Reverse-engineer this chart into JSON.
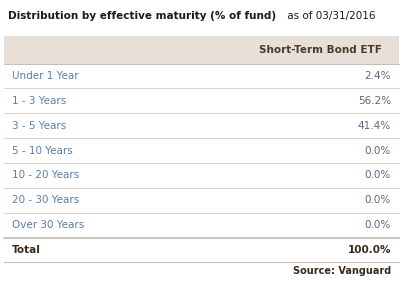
{
  "title_bold": "Distribution by effective maturity (% of fund)",
  "title_normal": " as of 03/31/2016",
  "header_col2": "Short-Term Bond ETF",
  "rows": [
    [
      "Under 1 Year",
      "2.4%"
    ],
    [
      "1 - 3 Years",
      "56.2%"
    ],
    [
      "3 - 5 Years",
      "41.4%"
    ],
    [
      "5 - 10 Years",
      "0.0%"
    ],
    [
      "10 - 20 Years",
      "0.0%"
    ],
    [
      "20 - 30 Years",
      "0.0%"
    ],
    [
      "Over 30 Years",
      "0.0%"
    ]
  ],
  "total_row": [
    "Total",
    "100.0%"
  ],
  "source": "Source: Vanguard",
  "bg_color": "#ffffff",
  "header_bg": "#e8e0d8",
  "row_line_color": "#c8c0b8",
  "text_color_left": "#5a7fa8",
  "text_color_right": "#5a6a7a",
  "text_color_header": "#4a3a2a",
  "text_color_total": "#3a2a1a",
  "title_color_bold": "#1a1a1a",
  "title_color_normal": "#1a1a1a"
}
